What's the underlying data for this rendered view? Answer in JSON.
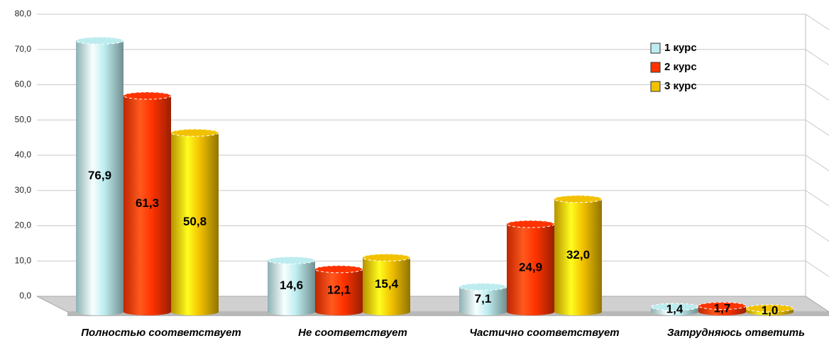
{
  "chart_data": {
    "type": "bar",
    "categories": [
      "Полностью соответствует",
      "Не соответствует",
      "Частично соответствует",
      "Затрудняюсь ответить"
    ],
    "series": [
      {
        "name": "1 курс",
        "color": "#bdecef",
        "values": [
          76.9,
          14.6,
          7.1,
          1.4
        ],
        "value_labels": [
          "76,9",
          "14,6",
          "7,1",
          "1,4"
        ]
      },
      {
        "name": "2 курс",
        "color": "#ff3300",
        "values": [
          61.3,
          12.1,
          24.9,
          1.7
        ],
        "value_labels": [
          "61,3",
          "12,1",
          "24,9",
          "1,7"
        ]
      },
      {
        "name": "3 курс",
        "color": "#f2c200",
        "values": [
          50.8,
          15.4,
          32.0,
          1.0
        ],
        "value_labels": [
          "50,8",
          "15,4",
          "32,0",
          "1,0"
        ]
      }
    ],
    "ylim": [
      0,
      80
    ],
    "yticks": [
      {
        "value": 0,
        "label": "0,0"
      },
      {
        "value": 10,
        "label": "10,0"
      },
      {
        "value": 20,
        "label": "20,0"
      },
      {
        "value": 30,
        "label": "30,0"
      },
      {
        "value": 40,
        "label": "40,0"
      },
      {
        "value": 50,
        "label": "50,0"
      },
      {
        "value": 60,
        "label": "60,0"
      },
      {
        "value": 70,
        "label": "70,0"
      },
      {
        "value": 80,
        "label": "80,0"
      }
    ],
    "grid": true,
    "legend": "upper right"
  }
}
